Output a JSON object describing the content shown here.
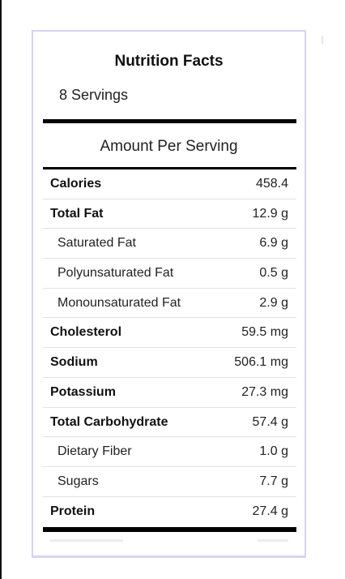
{
  "label": {
    "title": "Nutrition Facts",
    "servings": "8 Servings",
    "amount_per_serving": "Amount Per Serving",
    "rows": [
      {
        "name": "Calories",
        "value": "458.4",
        "bold": true
      },
      {
        "name": "Total Fat",
        "value": "12.9 g",
        "bold": true
      },
      {
        "name": "Saturated Fat",
        "value": "6.9 g",
        "bold": false
      },
      {
        "name": "Polyunsaturated Fat",
        "value": "0.5 g",
        "bold": false
      },
      {
        "name": "Monounsaturated Fat",
        "value": "2.9 g",
        "bold": false
      },
      {
        "name": "Cholesterol",
        "value": "59.5 mg",
        "bold": true
      },
      {
        "name": "Sodium",
        "value": "506.1 mg",
        "bold": true
      },
      {
        "name": "Potassium",
        "value": "27.3 mg",
        "bold": true
      },
      {
        "name": "Total Carbohydrate",
        "value": "57.4 g",
        "bold": true
      },
      {
        "name": "Dietary Fiber",
        "value": "1.0 g",
        "bold": false
      },
      {
        "name": "Sugars",
        "value": "7.7 g",
        "bold": false
      },
      {
        "name": "Protein",
        "value": "27.4 g",
        "bold": true
      }
    ]
  },
  "colors": {
    "panel_border": "#d4d4f3",
    "rule": "#000000",
    "row_divider": "#e2e2e2"
  }
}
